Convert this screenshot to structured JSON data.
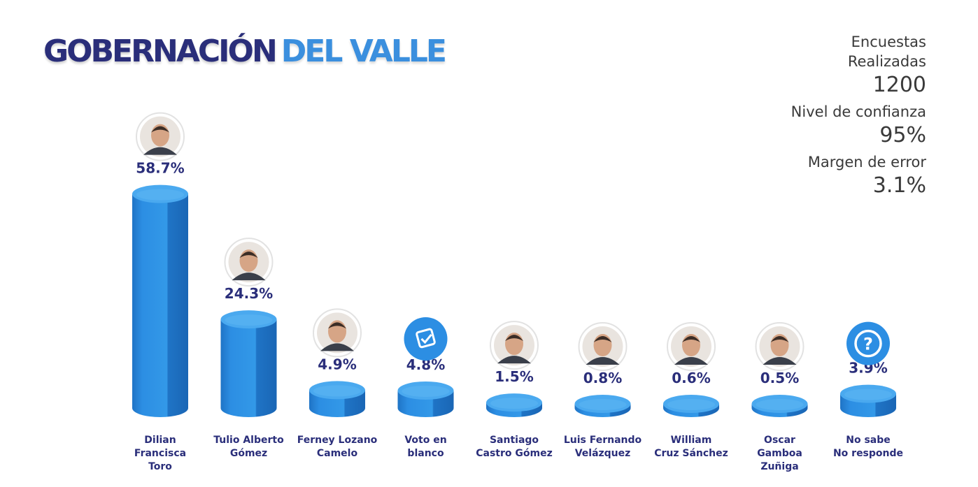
{
  "header": {
    "title_part1": "GOBERNACIÓN",
    "title_part2": "DEL VALLE"
  },
  "stats": {
    "surveys_label": "Encuestas Realizadas",
    "surveys_value": "1200",
    "confidence_label": "Nivel de confianza",
    "confidence_value": "95%",
    "error_label": "Margen de error",
    "error_value": "3.1%"
  },
  "colors": {
    "title_dark": "#2a2e7a",
    "title_light": "#3b8fde",
    "bar_front": "#2c8ee3",
    "bar_side": "#1f74c6",
    "bar_top": "#4aa9ef",
    "icon_blue": "#2c8ee3"
  },
  "chart_data": {
    "type": "bar",
    "categories": [
      "Dilian Francisca Toro",
      "Tulio Alberto Gómez",
      "Ferney Lozano Camelo",
      "Voto en blanco",
      "Santiago Castro Gómez",
      "Luis Fernando Velázquez",
      "William Cruz Sánchez",
      "Oscar Gamboa Zuñiga",
      "No sabe No responde"
    ],
    "category_lines": [
      [
        "Dilian",
        "Francisca",
        "Toro"
      ],
      [
        "Tulio Alberto",
        "Gómez"
      ],
      [
        "Ferney Lozano",
        "Camelo"
      ],
      [
        "Voto en",
        "blanco"
      ],
      [
        "Santiago",
        "Castro Gómez"
      ],
      [
        "Luis Fernando",
        "Velázquez"
      ],
      [
        "William",
        "Cruz Sánchez"
      ],
      [
        "Oscar",
        "Gamboa",
        "Zuñiga"
      ],
      [
        "No sabe",
        "No responde"
      ]
    ],
    "values": [
      58.7,
      24.3,
      4.9,
      4.8,
      1.5,
      0.8,
      0.6,
      0.5,
      3.9
    ],
    "value_labels": [
      "58.7%",
      "24.3%",
      "4.9%",
      "4.8%",
      "1.5%",
      "0.8%",
      "0.6%",
      "0.5%",
      "3.9%"
    ],
    "icons": [
      "portrait",
      "portrait",
      "portrait",
      "ballot-check-icon",
      "portrait",
      "portrait",
      "portrait",
      "portrait",
      "question-icon"
    ],
    "title": "",
    "xlabel": "",
    "ylabel": "",
    "ylim": [
      0,
      60
    ]
  }
}
